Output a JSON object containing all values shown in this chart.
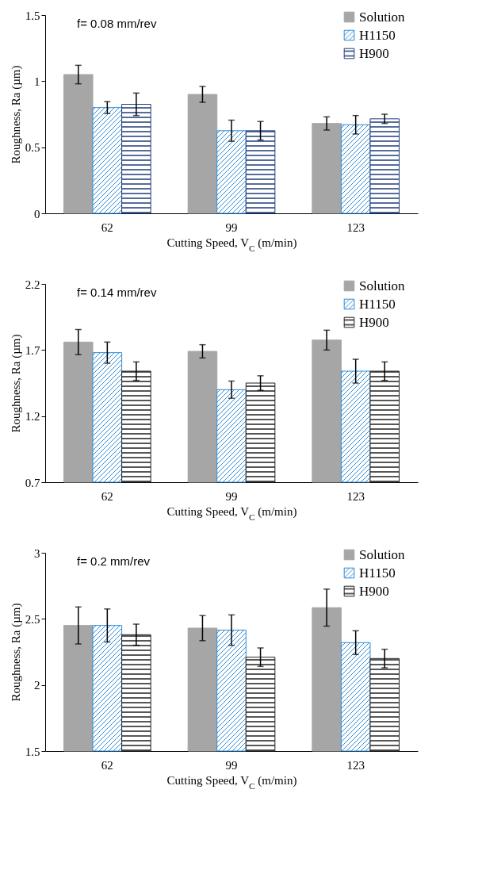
{
  "chart_data": [
    {
      "type": "bar",
      "categories": [
        "62",
        "99",
        "123"
      ],
      "xlabel": "Cutting  Speed, V$_{C}$ (m/min)",
      "ylabel": "Roughness, Ra (µm)",
      "annotations": [
        "f= 0.08 mm/rev"
      ],
      "ylim": [
        0,
        1.5
      ],
      "yticks": [
        0,
        0.5,
        1,
        1.5
      ],
      "legend": "top right",
      "series": [
        {
          "name": "Solution",
          "color": "#a6a6a6",
          "values": [
            1.05,
            0.9,
            0.68
          ],
          "errors": [
            0.07,
            0.06,
            0.05
          ]
        },
        {
          "name": "H1150",
          "color": "#2e8bd6",
          "values": [
            0.8,
            0.625,
            0.67
          ],
          "errors": [
            0.045,
            0.08,
            0.07
          ]
        },
        {
          "name": "H900",
          "color": "#1f3a7a",
          "values": [
            0.825,
            0.625,
            0.715
          ],
          "errors": [
            0.085,
            0.07,
            0.035
          ]
        }
      ]
    },
    {
      "type": "bar",
      "categories": [
        "62",
        "99",
        "123"
      ],
      "xlabel": "Cutting  Speed, V$_{C}$ (m/min)",
      "ylabel": "Roughness, Ra (µm)",
      "annotations": [
        "f= 0.14 mm/rev"
      ],
      "ylim": [
        0.7,
        2.2
      ],
      "yticks": [
        0.7,
        1.2,
        1.7,
        2.2
      ],
      "legend": "top right",
      "series": [
        {
          "name": "Solution",
          "color": "#a6a6a6",
          "values": [
            1.76,
            1.69,
            1.775
          ],
          "errors": [
            0.095,
            0.05,
            0.075
          ]
        },
        {
          "name": "H1150",
          "color": "#2e8bd6",
          "values": [
            1.68,
            1.4,
            1.54
          ],
          "errors": [
            0.08,
            0.065,
            0.09
          ]
        },
        {
          "name": "H900",
          "color": "#1f1f1f",
          "values": [
            1.54,
            1.45,
            1.54
          ],
          "errors": [
            0.07,
            0.055,
            0.07
          ]
        }
      ]
    },
    {
      "type": "bar",
      "categories": [
        "62",
        "99",
        "123"
      ],
      "xlabel": "Cutting  Speed, V$_{C}$ (m/min)",
      "ylabel": "Roughness, Ra (µm)",
      "annotations": [
        "f= 0.2 mm/rev"
      ],
      "ylim": [
        1.5,
        3
      ],
      "yticks": [
        1.5,
        2,
        2.5,
        3
      ],
      "legend": "top right",
      "series": [
        {
          "name": "Solution",
          "color": "#a6a6a6",
          "values": [
            2.45,
            2.43,
            2.585
          ],
          "errors": [
            0.14,
            0.095,
            0.14
          ]
        },
        {
          "name": "H1150",
          "color": "#2e8bd6",
          "values": [
            2.45,
            2.415,
            2.32
          ],
          "errors": [
            0.125,
            0.115,
            0.09
          ]
        },
        {
          "name": "H900",
          "color": "#1f1f1f",
          "values": [
            2.38,
            2.21,
            2.2
          ],
          "errors": [
            0.08,
            0.07,
            0.07
          ]
        }
      ]
    }
  ]
}
